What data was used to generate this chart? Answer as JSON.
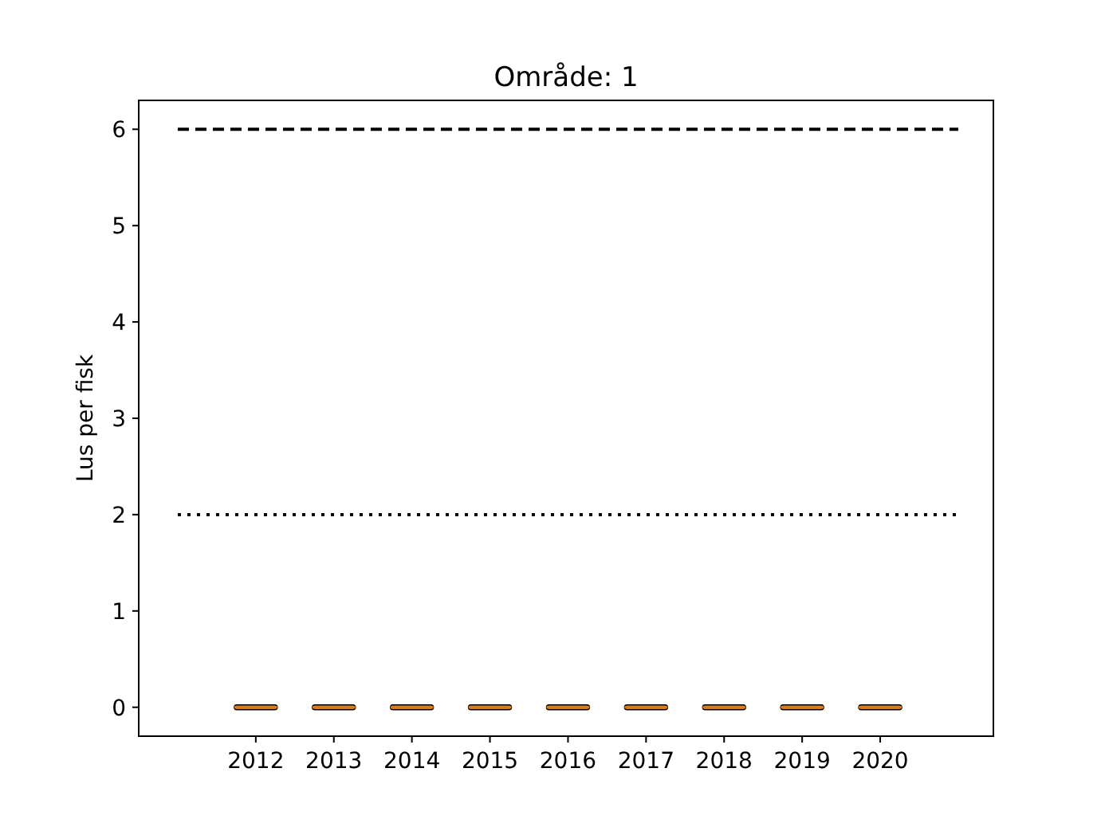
{
  "chart_data": {
    "type": "box",
    "title": "Område: 1",
    "ylabel": "Lus per fisk",
    "categories": [
      "2012",
      "2013",
      "2014",
      "2015",
      "2016",
      "2017",
      "2018",
      "2019",
      "2020"
    ],
    "boxes": [
      {
        "low": 0,
        "q1": 0,
        "median": 0,
        "q3": 0,
        "high": 0
      },
      {
        "low": 0,
        "q1": 0,
        "median": 0,
        "q3": 0,
        "high": 0
      },
      {
        "low": 0,
        "q1": 0,
        "median": 0,
        "q3": 0,
        "high": 0
      },
      {
        "low": 0,
        "q1": 0,
        "median": 0,
        "q3": 0,
        "high": 0
      },
      {
        "low": 0,
        "q1": 0,
        "median": 0,
        "q3": 0,
        "high": 0
      },
      {
        "low": 0,
        "q1": 0,
        "median": 0,
        "q3": 0,
        "high": 0
      },
      {
        "low": 0,
        "q1": 0,
        "median": 0,
        "q3": 0,
        "high": 0
      },
      {
        "low": 0,
        "q1": 0,
        "median": 0,
        "q3": 0,
        "high": 0
      },
      {
        "low": 0,
        "q1": 0,
        "median": 0,
        "q3": 0,
        "high": 0
      }
    ],
    "color": "#e07b12",
    "ylim": [
      -0.3,
      6.3
    ],
    "yticks": [
      0,
      1,
      2,
      3,
      4,
      5,
      6
    ],
    "ref_lines": [
      {
        "axis": "y",
        "value": 6,
        "line_style": "dashed",
        "color": "#000000"
      },
      {
        "axis": "y",
        "value": 2,
        "line_style": "dotted",
        "color": "#000000"
      }
    ],
    "grid": false
  }
}
